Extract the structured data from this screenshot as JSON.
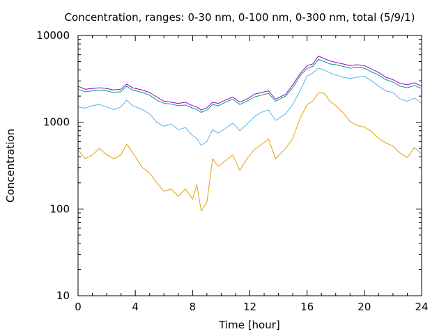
{
  "chart_data": {
    "type": "line",
    "title": "Concentration, ranges: 0-30 nm, 0-100 nm, 0-300 nm, total (5/9/1)",
    "xlabel": "Time [hour]",
    "ylabel": "Concentration",
    "xlim": [
      0,
      24
    ],
    "ylim": [
      10,
      10000
    ],
    "yscale": "log",
    "grid": false,
    "legend": "none",
    "x_ticks": [
      0,
      4,
      8,
      12,
      16,
      20,
      24
    ],
    "y_ticks": [
      10,
      100,
      1000,
      10000
    ],
    "y_tick_labels": [
      "10",
      "100",
      "1000",
      "10000"
    ],
    "x": [
      0,
      0.5,
      1,
      1.5,
      2,
      2.5,
      3,
      3.4,
      3.8,
      4.5,
      5,
      5.5,
      6,
      6.5,
      7,
      7.5,
      8,
      8.3,
      8.6,
      9,
      9.4,
      9.8,
      10.3,
      10.8,
      11.3,
      11.8,
      12.3,
      12.8,
      13.3,
      13.8,
      14.5,
      15,
      15.5,
      16,
      16.4,
      16.8,
      17.2,
      17.6,
      18,
      18.5,
      19,
      19.5,
      20,
      20.5,
      21,
      21.5,
      22,
      22.5,
      23,
      23.5,
      24
    ],
    "series": [
      {
        "color": "#e69f00",
        "values": [
          480,
          380,
          420,
          500,
          420,
          380,
          420,
          560,
          450,
          300,
          260,
          200,
          160,
          170,
          140,
          170,
          130,
          190,
          95,
          120,
          380,
          310,
          360,
          420,
          280,
          380,
          480,
          550,
          640,
          380,
          500,
          650,
          1100,
          1600,
          1750,
          2200,
          2150,
          1750,
          1550,
          1300,
          1020,
          920,
          880,
          780,
          650,
          580,
          530,
          440,
          390,
          510,
          430
        ]
      },
      {
        "color": "#56b4e9",
        "values": [
          1500,
          1450,
          1550,
          1600,
          1500,
          1400,
          1500,
          1800,
          1550,
          1400,
          1250,
          1000,
          900,
          950,
          820,
          870,
          700,
          650,
          540,
          600,
          820,
          750,
          850,
          980,
          800,
          950,
          1150,
          1300,
          1380,
          1050,
          1250,
          1600,
          2300,
          3400,
          3700,
          4200,
          4000,
          3700,
          3500,
          3300,
          3200,
          3300,
          3400,
          3000,
          2600,
          2300,
          2200,
          1850,
          1750,
          1900,
          1650
        ]
      },
      {
        "color": "#009e73",
        "values": [
          2400,
          2250,
          2300,
          2350,
          2300,
          2200,
          2250,
          2600,
          2350,
          2200,
          2050,
          1800,
          1650,
          1620,
          1550,
          1580,
          1450,
          1400,
          1300,
          1380,
          1600,
          1550,
          1700,
          1850,
          1600,
          1750,
          1950,
          2050,
          2150,
          1750,
          2000,
          2500,
          3400,
          4200,
          4400,
          5300,
          5000,
          4700,
          4600,
          4400,
          4200,
          4300,
          4200,
          3800,
          3500,
          3100,
          2900,
          2600,
          2500,
          2650,
          2450
        ]
      },
      {
        "color": "#9400d3",
        "values": [
          2600,
          2400,
          2450,
          2500,
          2450,
          2350,
          2400,
          2750,
          2500,
          2350,
          2200,
          1950,
          1750,
          1700,
          1650,
          1700,
          1550,
          1500,
          1380,
          1470,
          1700,
          1650,
          1800,
          1950,
          1700,
          1850,
          2100,
          2200,
          2300,
          1850,
          2100,
          2700,
          3600,
          4500,
          4700,
          5800,
          5400,
          5100,
          4900,
          4700,
          4500,
          4600,
          4500,
          4100,
          3750,
          3300,
          3100,
          2800,
          2700,
          2850,
          2600
        ]
      }
    ]
  }
}
